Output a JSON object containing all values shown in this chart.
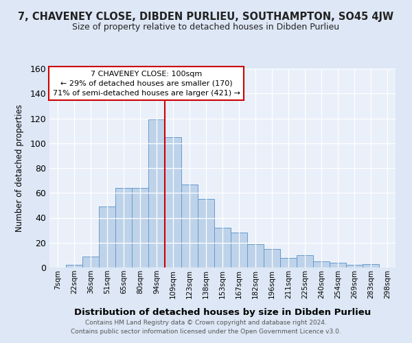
{
  "title": "7, CHAVENEY CLOSE, DIBDEN PURLIEU, SOUTHAMPTON, SO45 4JW",
  "subtitle": "Size of property relative to detached houses in Dibden Purlieu",
  "xlabel": "Distribution of detached houses by size in Dibden Purlieu",
  "ylabel": "Number of detached properties",
  "bar_labels": [
    "7sqm",
    "22sqm",
    "36sqm",
    "51sqm",
    "65sqm",
    "80sqm",
    "94sqm",
    "109sqm",
    "123sqm",
    "138sqm",
    "153sqm",
    "167sqm",
    "182sqm",
    "196sqm",
    "211sqm",
    "225sqm",
    "240sqm",
    "254sqm",
    "269sqm",
    "283sqm",
    "298sqm"
  ],
  "bar_values": [
    0,
    2,
    9,
    49,
    64,
    64,
    119,
    105,
    67,
    55,
    32,
    28,
    19,
    15,
    8,
    10,
    5,
    4,
    2,
    3,
    0
  ],
  "bar_color": "#bed3ea",
  "bar_edge_color": "#6699cc",
  "vline_pos": 7.0,
  "vline_color": "#cc0000",
  "ylim": [
    0,
    160
  ],
  "yticks": [
    0,
    20,
    40,
    60,
    80,
    100,
    120,
    140,
    160
  ],
  "box_title": "7 CHAVENEY CLOSE: 100sqm",
  "box_line1": "← 29% of detached houses are smaller (170)",
  "box_line2": "71% of semi-detached houses are larger (421) →",
  "box_edge_color": "#cc0000",
  "footnote1": "Contains HM Land Registry data © Crown copyright and database right 2024.",
  "footnote2": "Contains public sector information licensed under the Open Government Licence v3.0.",
  "bg_color": "#dde7f5",
  "plot_bg_color": "#eaf0f9"
}
